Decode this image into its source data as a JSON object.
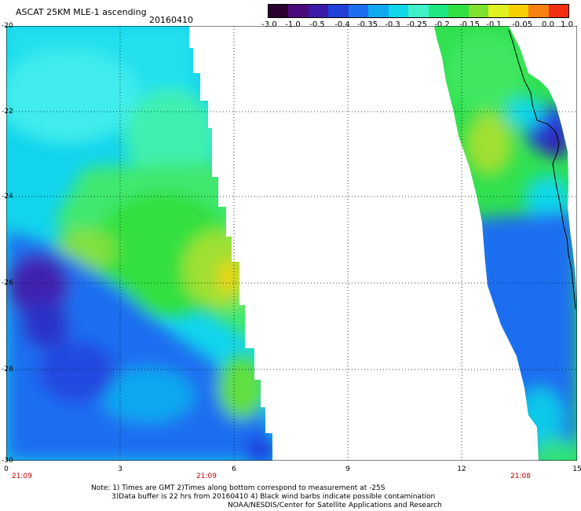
{
  "title": "ASCAT 25KM MLE-1 ascending",
  "date": "20160410",
  "colorbar": {
    "colors": [
      "#2b0030",
      "#4a0a7a",
      "#3a1aa8",
      "#2040d8",
      "#1e6ef0",
      "#10a8f0",
      "#10d8e8",
      "#40f0c8",
      "#20e880",
      "#30e040",
      "#80e030",
      "#e0f020",
      "#f8d000",
      "#f88010",
      "#f03010"
    ],
    "ticks": [
      "-3.0",
      "-1.0",
      "-0.5",
      "-0.4",
      "-0.35",
      "-0.3",
      "-0.25",
      "-0.2",
      "-0.15",
      "-0.1",
      "-0.05",
      "0.0",
      "1.0"
    ]
  },
  "axes": {
    "y_labels": [
      "-20",
      "-22",
      "-24",
      "-26",
      "-28",
      "-30"
    ],
    "x_labels": [
      "0",
      "3",
      "6",
      "9",
      "12",
      "15"
    ],
    "time_labels": [
      "21:09",
      "21:09",
      "21:08"
    ]
  },
  "notes": [
    "Note: 1) Times are GMT 2)Times along bottom correspond to measurement at -25S",
    "3)Data buffer is 22 hrs from 20160410 4) Black wind barbs indicate possible contamination",
    "NOAA/NESDIS/Center for Satellite Applications and Research"
  ]
}
